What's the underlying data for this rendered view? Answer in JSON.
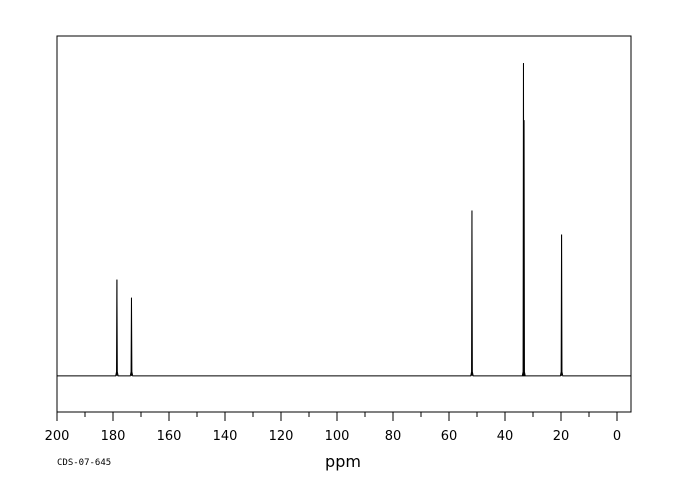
{
  "chart_data": {
    "type": "line",
    "title": "",
    "xlabel": "ppm",
    "ylabel": "",
    "xlim": [
      200,
      -5
    ],
    "x_reversed": true,
    "ylim": [
      -12,
      113
    ],
    "grid": false,
    "tick_values": [
      200,
      180,
      160,
      140,
      120,
      100,
      80,
      60,
      40,
      20,
      0
    ],
    "tick_labels": [
      "200",
      "180",
      "160",
      "140",
      "120",
      "100",
      "80",
      "60",
      "40",
      "20",
      "0"
    ],
    "minor_tick_step": 10,
    "baseline": 0,
    "peaks": [
      {
        "ppm": 178.6,
        "intensity": 32
      },
      {
        "ppm": 173.4,
        "intensity": 26
      },
      {
        "ppm": 51.8,
        "intensity": 55
      },
      {
        "ppm": 33.4,
        "intensity": 104
      },
      {
        "ppm": 33.2,
        "intensity": 85
      },
      {
        "ppm": 19.8,
        "intensity": 47
      }
    ],
    "annotations": [
      "CDS-07-645"
    ]
  },
  "footer": {
    "code": "CDS-07-645"
  }
}
